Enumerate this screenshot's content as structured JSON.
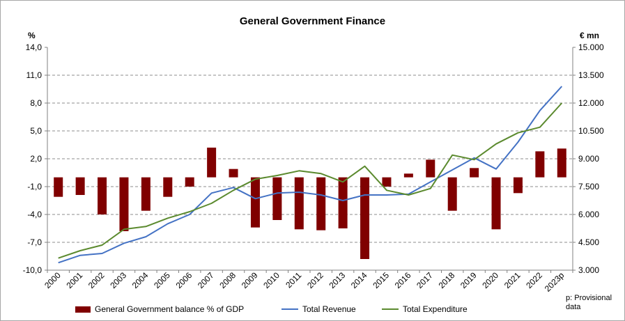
{
  "chart_data": {
    "type": "bar",
    "title": "General Government Finance",
    "left_axis_unit": "%",
    "right_axis_unit": "€ mn",
    "categories": [
      "2000",
      "2001",
      "2002",
      "2003",
      "2004",
      "2005",
      "2006",
      "2007",
      "2008",
      "2009",
      "2010",
      "2011",
      "2012",
      "2013",
      "2014",
      "2015",
      "2016",
      "2017",
      "2018",
      "2019",
      "2020",
      "2021",
      "2022",
      "2023p"
    ],
    "left_ticks": [
      "14,0",
      "11,0",
      "8,0",
      "5,0",
      "2,0",
      "-1,0",
      "-4,0",
      "-7,0",
      "-10,0"
    ],
    "right_ticks": [
      "15.000",
      "13.500",
      "12.000",
      "10.500",
      "9.000",
      "7.500",
      "6.000",
      "4.500",
      "3.000"
    ],
    "ylim_left": [
      -10,
      14
    ],
    "ylim_right": [
      3000,
      15000
    ],
    "bar_baseline": 0,
    "grid": true,
    "series": [
      {
        "name": "General Government balance % of GDP",
        "kind": "bar",
        "axis": "left",
        "color": "#800000",
        "values": [
          -2.1,
          -1.9,
          -4.0,
          -5.8,
          -3.6,
          -2.1,
          -1.0,
          3.2,
          0.9,
          -5.4,
          -4.6,
          -5.6,
          -5.7,
          -5.5,
          -8.8,
          -1.0,
          0.4,
          1.9,
          -3.6,
          1.0,
          -5.6,
          -1.7,
          2.8,
          3.1
        ]
      },
      {
        "name": "Total Revenue",
        "kind": "line",
        "axis": "right",
        "color": "#4472c4",
        "values": [
          3400,
          3800,
          3900,
          4450,
          4800,
          5500,
          6000,
          7150,
          7450,
          6850,
          7150,
          7200,
          7050,
          6750,
          7050,
          7050,
          7100,
          7750,
          8400,
          9050,
          8450,
          9900,
          11600,
          12900
        ]
      },
      {
        "name": "Total Expenditure",
        "kind": "line",
        "axis": "right",
        "color": "#5b8a2e",
        "values": [
          3650,
          4050,
          4350,
          5200,
          5350,
          5800,
          6150,
          6600,
          7300,
          7900,
          8100,
          8350,
          8200,
          7750,
          8600,
          7300,
          7050,
          7400,
          9200,
          8950,
          9800,
          10400,
          10700,
          12000
        ]
      }
    ],
    "legend_position": "bottom",
    "footnote": "p: Provisional data"
  }
}
